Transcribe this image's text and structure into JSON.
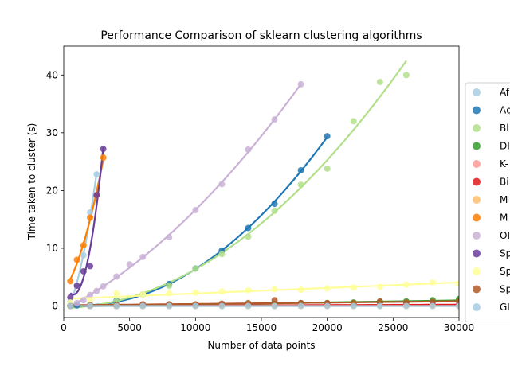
{
  "chart_data": {
    "type": "scatter",
    "title": "Performance Comparison of sklearn clustering algorithms",
    "xlabel": "Number of data points",
    "ylabel": "Time taken to cluster (s)",
    "xlim": [
      0,
      30000
    ],
    "ylim": [
      -2,
      45
    ],
    "xticks": [
      0,
      5000,
      10000,
      15000,
      20000,
      25000,
      30000
    ],
    "xtick_labels": [
      "0",
      "5000",
      "10000",
      "15000",
      "20000",
      "25000",
      "30000"
    ],
    "yticks": [
      0,
      10,
      20,
      30,
      40
    ],
    "ytick_labels": [
      "0",
      "10",
      "20",
      "30",
      "40"
    ],
    "grid": false,
    "legend_position": "right (clipped)",
    "series": [
      {
        "name": "Af",
        "color": "#a6cee3",
        "fit": "quadratic",
        "x": [
          500,
          1000,
          1500,
          2000,
          2500
        ],
        "y": [
          0.8,
          3.5,
          8.8,
          16.2,
          22.8
        ]
      },
      {
        "name": "Ag",
        "color": "#1f78b4",
        "fit": "quadratic",
        "x": [
          500,
          1000,
          2000,
          4000,
          6000,
          8000,
          10000,
          12000,
          14000,
          16000,
          18000,
          20000
        ],
        "y": [
          0.0,
          0.1,
          0.2,
          0.9,
          2.0,
          3.8,
          6.5,
          9.6,
          13.5,
          17.7,
          23.5,
          29.4
        ]
      },
      {
        "name": "Bl",
        "color": "#b2df8a",
        "fit": "quadratic",
        "x": [
          500,
          2000,
          4000,
          6000,
          8000,
          10000,
          12000,
          14000,
          16000,
          18000,
          20000,
          22000,
          24000,
          26000
        ],
        "y": [
          0.0,
          0.2,
          0.8,
          2.0,
          3.5,
          6.5,
          9.0,
          12.0,
          16.5,
          21.0,
          23.8,
          32.0,
          38.8,
          40.0
        ]
      },
      {
        "name": "DI",
        "color": "#33a02c",
        "fit": "linear",
        "x": [
          500,
          2000,
          4000,
          6000,
          8000,
          10000,
          12000,
          14000,
          16000,
          18000,
          20000,
          22000,
          24000,
          26000,
          28000,
          30000
        ],
        "y": [
          0.0,
          0.0,
          0.1,
          0.1,
          0.2,
          0.2,
          0.3,
          0.3,
          0.4,
          0.5,
          0.5,
          0.6,
          0.7,
          0.8,
          1.0,
          1.2
        ]
      },
      {
        "name": "K-",
        "color": "#fb9a99",
        "fit": "linear",
        "x": [
          500,
          2000,
          4000,
          6000,
          8000,
          10000,
          12000,
          14000,
          16000,
          18000,
          20000,
          22000,
          24000,
          26000,
          28000,
          30000
        ],
        "y": [
          0.0,
          0.0,
          0.0,
          0.1,
          0.1,
          0.1,
          0.1,
          0.1,
          0.1,
          0.2,
          0.2,
          0.2,
          0.2,
          0.2,
          0.2,
          0.2
        ]
      },
      {
        "name": "Bi",
        "color": "#e31a1c",
        "fit": "linear",
        "x": [
          500,
          2000,
          4000,
          6000,
          8000,
          10000,
          12000,
          14000,
          16000,
          18000,
          20000,
          22000,
          24000,
          26000,
          28000,
          30000
        ],
        "y": [
          0.0,
          0.0,
          0.0,
          0.0,
          0.1,
          0.1,
          0.1,
          0.1,
          0.1,
          0.1,
          0.1,
          0.2,
          0.2,
          0.2,
          0.2,
          0.2
        ]
      },
      {
        "name": "M",
        "color": "#fdbf6f",
        "fit": "linear",
        "x": [
          500,
          2000,
          4000,
          6000,
          8000,
          10000,
          12000,
          14000,
          16000,
          18000,
          20000,
          22000,
          24000,
          26000,
          28000,
          30000
        ],
        "y": [
          0.0,
          0.0,
          0.0,
          0.0,
          0.0,
          0.0,
          0.0,
          0.0,
          0.0,
          0.0,
          0.0,
          0.0,
          0.0,
          0.0,
          0.0,
          0.0
        ]
      },
      {
        "name": "M",
        "color": "#ff7f00",
        "fit": "quadratic",
        "x": [
          500,
          1000,
          1500,
          2000,
          2500,
          3000
        ],
        "y": [
          4.3,
          8.0,
          10.5,
          15.3,
          19.2,
          25.7
        ]
      },
      {
        "name": "OI",
        "color": "#cab2d6",
        "fit": "quadratic",
        "x": [
          500,
          1000,
          1500,
          2000,
          2500,
          3000,
          4000,
          5000,
          6000,
          8000,
          10000,
          12000,
          14000,
          16000,
          18000
        ],
        "y": [
          0.1,
          0.5,
          1.0,
          1.9,
          2.6,
          3.4,
          5.1,
          7.2,
          8.5,
          11.9,
          16.6,
          21.1,
          27.1,
          32.3,
          38.4
        ]
      },
      {
        "name": "Sp",
        "color": "#6a3d9a",
        "fit": "quadratic",
        "x": [
          500,
          1000,
          1500,
          2000,
          2500,
          3000
        ],
        "y": [
          1.5,
          3.5,
          6.0,
          6.9,
          19.2,
          27.2
        ]
      },
      {
        "name": "Sp",
        "color": "#ffff99",
        "fit": "linear",
        "x": [
          500,
          2000,
          4000,
          6000,
          8000,
          10000,
          12000,
          14000,
          16000,
          18000,
          20000,
          22000,
          24000,
          26000,
          28000,
          30000
        ],
        "y": [
          0.6,
          1.0,
          2.2,
          2.0,
          2.2,
          2.3,
          2.5,
          2.7,
          2.9,
          2.8,
          3.0,
          3.2,
          3.3,
          3.7,
          4.1,
          3.9
        ]
      },
      {
        "name": "Sp",
        "color": "#b15928",
        "fit": "linear",
        "x": [
          500,
          2000,
          4000,
          6000,
          8000,
          10000,
          12000,
          14000,
          16000,
          18000,
          20000,
          22000,
          24000,
          26000,
          28000,
          30000
        ],
        "y": [
          0.0,
          0.1,
          0.2,
          0.3,
          0.3,
          0.3,
          0.4,
          0.5,
          1.0,
          0.5,
          0.5,
          0.5,
          0.8,
          0.6,
          0.7,
          0.8
        ]
      },
      {
        "name": "GI",
        "color": "#a6cee3",
        "fit": "linear",
        "x": [
          500,
          2000,
          4000,
          6000,
          8000,
          10000,
          12000,
          14000,
          16000,
          18000,
          20000,
          22000,
          24000,
          26000,
          28000,
          30000
        ],
        "y": [
          0.0,
          0.0,
          0.0,
          0.0,
          0.0,
          0.0,
          0.0,
          0.0,
          0.0,
          0.0,
          0.0,
          0.0,
          0.0,
          0.0,
          0.0,
          0.0
        ]
      }
    ]
  }
}
